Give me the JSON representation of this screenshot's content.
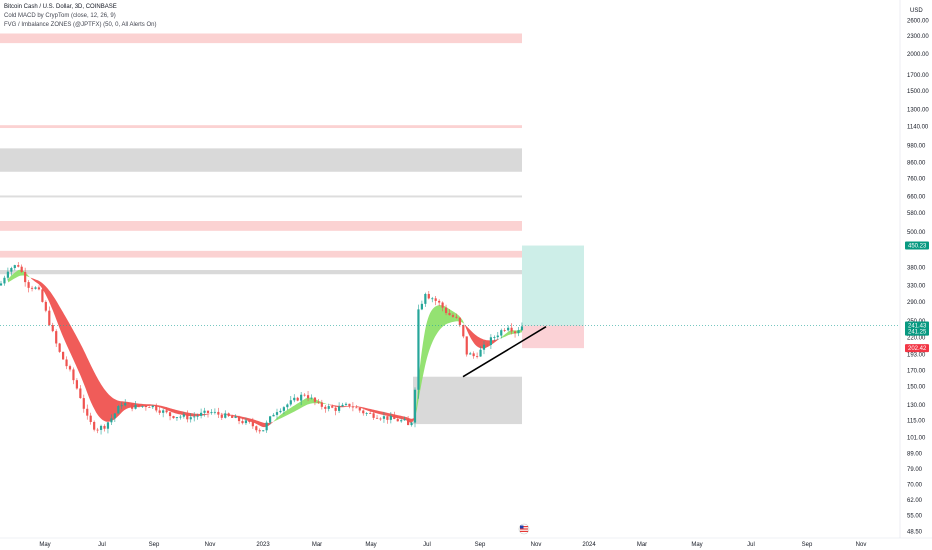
{
  "legend": {
    "symbol": "Bitcoin Cash / U.S. Dollar, 3D, COINBASE",
    "indicator1": "Cold MACD by CrypTom (close, 12, 26, 9)",
    "indicator2": "FVG / Imbalance ZONES (@JPTFX) (50, 0, All Alerts On)"
  },
  "colors": {
    "up": "#26a69a",
    "down": "#ef5350",
    "ribbon_bull": "#8ee06a",
    "ribbon_bear": "#ef5350",
    "zone_red": "#fbd2d2",
    "zone_grey": "#d9d9d9",
    "target_green": "#cdeee8",
    "stop_red": "#fbd2d6",
    "tag_green": "#089981",
    "tag_red": "#f23645"
  },
  "chart_data": {
    "type": "candlestick",
    "y_scale": "log",
    "currency": "USD",
    "y_ticks": [
      "2600.00",
      "2300.00",
      "2000.00",
      "1700.00",
      "1500.00",
      "1300.00",
      "1140.00",
      "980.00",
      "860.00",
      "760.00",
      "660.00",
      "580.00",
      "500.00",
      "450.00",
      "380.00",
      "330.00",
      "290.00",
      "250.00",
      "220.00",
      "193.00",
      "170.00",
      "150.00",
      "130.00",
      "115.00",
      "101.00",
      "89.00",
      "79.00",
      "70.00",
      "62.00",
      "55.00",
      "48.50"
    ],
    "x_ticks": [
      "May",
      "Jul",
      "Sep",
      "Nov",
      "2023",
      "Mar",
      "May",
      "Jul",
      "Sep",
      "Nov",
      "2024",
      "Mar",
      "May",
      "Jul",
      "Sep",
      "Nov"
    ],
    "price_tags": [
      {
        "label": "450.23",
        "value": 450.23,
        "kind": "green"
      },
      {
        "label": "241.43",
        "value": 241.43,
        "kind": "green"
      },
      {
        "label": "241.25",
        "value": 241.25,
        "kind": "green"
      },
      {
        "label": "202.42",
        "value": 202.42,
        "kind": "red"
      }
    ],
    "zones": [
      {
        "kind": "red",
        "from": 2180,
        "to": 2350
      },
      {
        "kind": "red",
        "from": 1125,
        "to": 1150
      },
      {
        "kind": "grey",
        "from": 800,
        "to": 960
      },
      {
        "kind": "grey",
        "from": 655,
        "to": 665
      },
      {
        "kind": "red",
        "from": 505,
        "to": 545
      },
      {
        "kind": "red",
        "from": 410,
        "to": 432
      },
      {
        "kind": "grey",
        "from": 360,
        "to": 372
      },
      {
        "kind": "grey",
        "from": 112,
        "to": 162
      }
    ],
    "position": {
      "entry": 241.43,
      "target": 450.23,
      "stop": 202.42
    },
    "trendline": {
      "start": 162,
      "end": 241
    }
  }
}
